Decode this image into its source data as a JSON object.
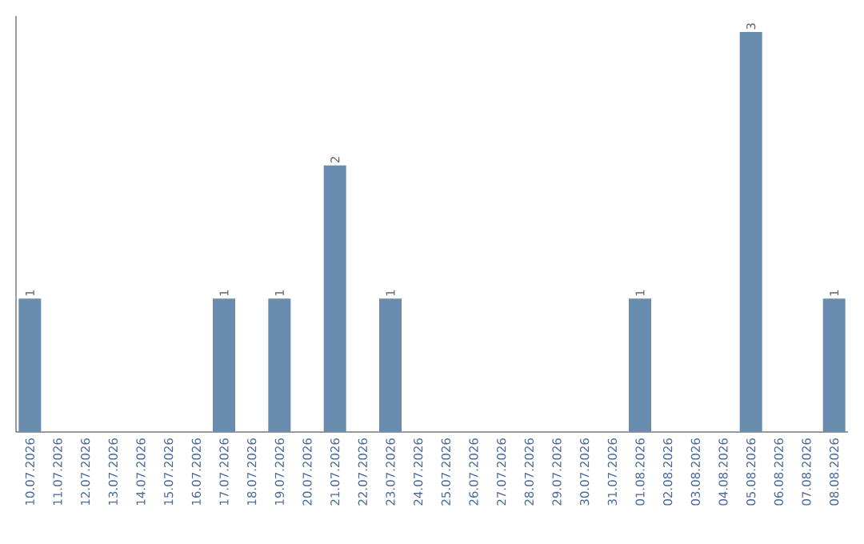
{
  "chart_data": {
    "type": "bar",
    "categories": [
      "10.07.2026",
      "11.07.2026",
      "12.07.2026",
      "13.07.2026",
      "14.07.2026",
      "15.07.2026",
      "16.07.2026",
      "17.07.2026",
      "18.07.2026",
      "19.07.2026",
      "20.07.2026",
      "21.07.2026",
      "22.07.2026",
      "23.07.2026",
      "24.07.2026",
      "25.07.2026",
      "26.07.2026",
      "27.07.2026",
      "28.07.2026",
      "29.07.2026",
      "30.07.2026",
      "31.07.2026",
      "01.08.2026",
      "02.08.2026",
      "03.08.2026",
      "04.08.2026",
      "05.08.2026",
      "06.08.2026",
      "07.08.2026",
      "08.08.2026"
    ],
    "values": [
      1,
      0,
      0,
      0,
      0,
      0,
      0,
      1,
      0,
      1,
      0,
      2,
      0,
      1,
      0,
      0,
      0,
      0,
      0,
      0,
      0,
      0,
      1,
      0,
      0,
      0,
      3,
      0,
      0,
      1
    ],
    "value_labels": [
      "1",
      null,
      null,
      null,
      null,
      null,
      null,
      "1",
      null,
      "1",
      null,
      "2",
      null,
      "1",
      null,
      null,
      null,
      null,
      null,
      null,
      null,
      null,
      "1",
      null,
      null,
      null,
      "3",
      null,
      null,
      "1"
    ],
    "color": "#6a8caf"
  }
}
